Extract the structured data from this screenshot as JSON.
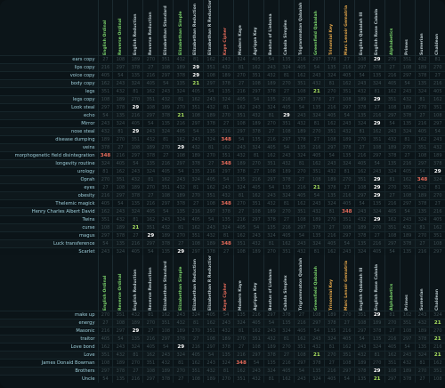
{
  "ciphers": [
    {
      "name": "English Ordinal",
      "color": "#7bd36b"
    },
    {
      "name": "Reverse Ordinal",
      "color": "#7bd36b"
    },
    {
      "name": "English Reduction",
      "color": "#b9c8cc"
    },
    {
      "name": "Reverse Reduction",
      "color": "#b9c8cc"
    },
    {
      "name": "Elizabethan Standard",
      "color": "#b9c8cc"
    },
    {
      "name": "Elizabethan Simple",
      "color": "#7bd36b"
    },
    {
      "name": "Elizabethan Reduction",
      "color": "#b9c8cc"
    },
    {
      "name": "Elizabethan R Reduction",
      "color": "#b9c8cc"
    },
    {
      "name": "Kaye Cipher",
      "color": "#e66b5b"
    },
    {
      "name": "Modern Kaye",
      "color": "#b9c8cc"
    },
    {
      "name": "Agrippa Key",
      "color": "#b9c8cc"
    },
    {
      "name": "Beatus of Liebana",
      "color": "#b9c8cc"
    },
    {
      "name": "Cabala Simplex",
      "color": "#b9c8cc"
    },
    {
      "name": "Trigrammaton Qabalah",
      "color": "#b9c8cc"
    },
    {
      "name": "Greenfield Qabalah",
      "color": "#7bd36b"
    },
    {
      "name": "Trinomial Key",
      "color": "#e6a84b"
    },
    {
      "name": "Marc Lenoir Gematria",
      "color": "#e6a84b"
    },
    {
      "name": "English Qabalah III",
      "color": "#b9c8cc"
    },
    {
      "name": "English Rose Cabala",
      "color": "#b9c8cc"
    },
    {
      "name": "Alphabetics",
      "color": "#7bd36b"
    },
    {
      "name": "Primes",
      "color": "#b9c8cc"
    },
    {
      "name": "Sumerian",
      "color": "#b9c8cc"
    },
    {
      "name": "Chaldean",
      "color": "#b9c8cc"
    }
  ],
  "rows_top": [
    {
      "label": "ears copy",
      "hits": {
        "18": "29"
      }
    },
    {
      "label": "lips copy",
      "hits": {
        "6": "29"
      }
    },
    {
      "label": "voice copy",
      "hits": {
        "6": "29"
      }
    },
    {
      "label": "body copy",
      "hits": {
        "6": "21"
      }
    },
    {
      "label": "legs",
      "hits": {
        "14": "21"
      }
    },
    {
      "label": "legs copy",
      "hits": {
        "18": "29"
      }
    },
    {
      "label": "Look steal",
      "hits": {
        "2": "29"
      }
    },
    {
      "label": "echo",
      "hits": {
        "5": "21",
        "12": "29"
      }
    },
    {
      "label": "Mirror",
      "hits": {
        "18": "29"
      }
    },
    {
      "label": "nose steal",
      "hits": {
        "2": "29"
      }
    },
    {
      "label": "disease dumping",
      "hits": {
        "8": "348"
      }
    },
    {
      "label": "veins",
      "hits": {
        "5": "29"
      }
    },
    {
      "label": "morphogenetic field disintegration",
      "hits": {
        "0": "348"
      }
    },
    {
      "label": "longevity routine",
      "hits": {
        "8": "348"
      }
    },
    {
      "label": "urology",
      "hits": {
        "22": "29"
      }
    },
    {
      "label": "Oprah",
      "hits": {
        "18": "29",
        "21": "348"
      }
    },
    {
      "label": "eyes",
      "hits": {
        "14": "21",
        "18": "29"
      }
    },
    {
      "label": "obesity",
      "hits": {
        "18": "29"
      }
    },
    {
      "label": "Thelemic magick",
      "hits": {
        "8": "348"
      }
    },
    {
      "label": "Henry Charles Albert David",
      "hits": {
        "16": "348"
      }
    },
    {
      "label": "Twins",
      "hits": {
        "18": "29"
      }
    },
    {
      "label": "curse",
      "hits": {
        "2": "21"
      }
    },
    {
      "label": "magus",
      "hits": {
        "3": "29"
      }
    },
    {
      "label": "Luck transference",
      "hits": {
        "8": "348"
      }
    },
    {
      "label": "Scarlet",
      "hits": {
        "5": "29"
      }
    }
  ],
  "rows_bottom": [
    {
      "label": "make up",
      "hits": {
        "18": "29"
      }
    },
    {
      "label": "energy",
      "hits": {
        "22": "21"
      }
    },
    {
      "label": "Masonic",
      "hits": {
        "2": "29"
      }
    },
    {
      "label": "traitor",
      "hits": {
        "22": "21"
      }
    },
    {
      "label": "Love bond",
      "hits": {
        "5": "29"
      }
    },
    {
      "label": "Love",
      "hits": {
        "14": "21",
        "22": "21"
      }
    },
    {
      "label": "James Donald Bowman",
      "hits": {
        "9": "348"
      }
    },
    {
      "label": "Brothers",
      "hits": {
        "18": "29"
      }
    },
    {
      "label": "Uncle",
      "hits": {
        "18": "21"
      }
    }
  ],
  "filler_values": [
    "27",
    "54",
    "81",
    "108",
    "135",
    "162",
    "189",
    "216",
    "243",
    "270",
    "297",
    "324",
    "351",
    "378",
    "405",
    "432"
  ]
}
